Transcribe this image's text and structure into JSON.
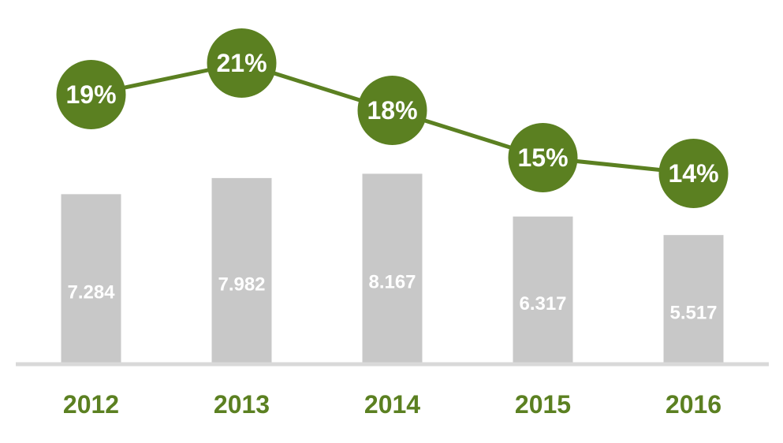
{
  "chart_data": {
    "type": "bar-line",
    "categories": [
      "2012",
      "2013",
      "2014",
      "2015",
      "2016"
    ],
    "series": [
      {
        "type": "bar",
        "color": "#c8c8c8",
        "values": [
          7.284,
          7.982,
          8.167,
          6.317,
          5.517
        ]
      },
      {
        "type": "line",
        "axis": "y2",
        "color": "#5b8021",
        "values": [
          19,
          21,
          18,
          15,
          14
        ],
        "value_labels": [
          "19%",
          "21%",
          "18%",
          "15%",
          "14%"
        ]
      }
    ],
    "ylim": [
      0,
      15
    ],
    "y2lim": [
      2,
      24
    ]
  }
}
